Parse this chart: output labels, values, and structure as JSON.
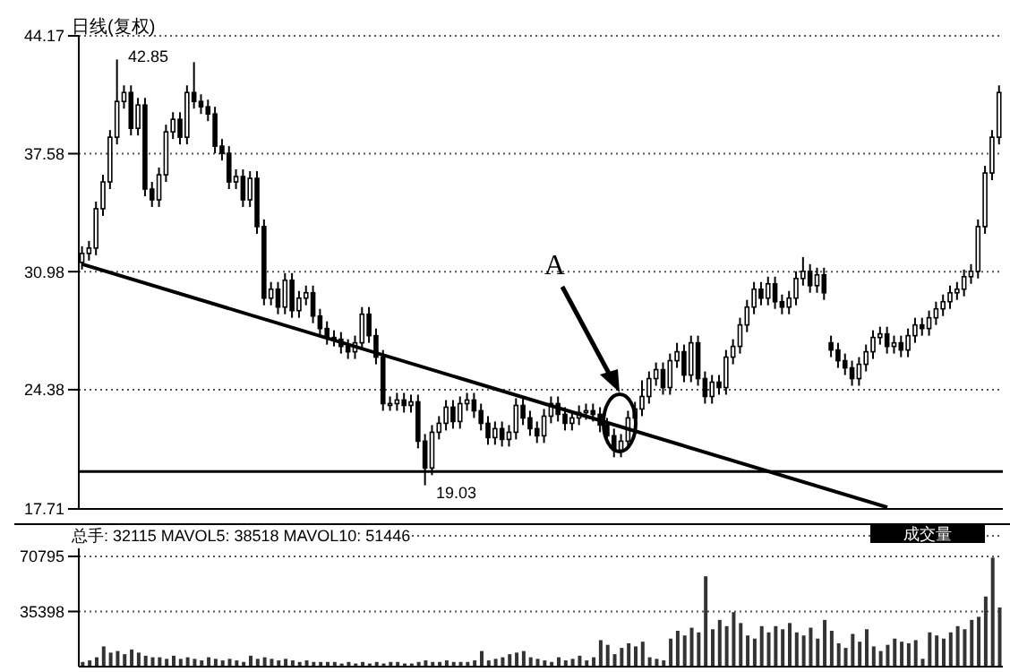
{
  "chart_data": [
    {
      "type": "candlestick",
      "title": "日线(复权)",
      "categories": [
        null,
        null,
        null,
        null,
        null,
        null,
        null,
        null,
        null,
        null,
        null,
        null,
        null,
        null,
        null,
        null,
        null,
        null,
        null,
        null,
        null,
        null,
        null,
        null,
        null,
        null,
        null,
        null,
        null,
        null,
        null,
        null,
        null,
        null,
        null,
        null,
        null,
        null,
        null,
        null,
        null,
        null,
        null,
        null,
        null,
        null,
        null,
        null,
        null,
        null,
        null,
        null,
        null,
        null,
        null,
        null,
        null,
        null,
        null,
        null,
        null,
        null,
        null,
        null,
        null,
        null,
        null,
        null,
        null,
        null,
        null,
        null,
        null,
        null,
        null,
        null,
        null,
        null,
        null,
        null,
        null,
        null,
        null,
        null,
        null,
        null,
        null,
        null,
        null,
        null,
        null,
        null,
        null,
        null,
        null,
        null,
        null,
        null,
        null,
        null,
        null,
        null,
        null,
        null,
        null,
        null,
        null,
        null,
        null,
        null,
        null,
        null,
        null,
        null,
        null,
        null,
        null,
        null,
        null,
        null,
        null,
        null,
        null,
        null,
        null,
        null,
        null,
        null,
        null,
        null,
        null,
        null
      ],
      "color": "#000000",
      "ohlc": [
        [
          31.5,
          32.4,
          31.1,
          32.0
        ],
        [
          32.0,
          32.7,
          31.6,
          32.3
        ],
        [
          32.3,
          34.9,
          31.9,
          34.5
        ],
        [
          34.5,
          36.4,
          34.1,
          36.0
        ],
        [
          36.0,
          38.9,
          35.6,
          38.5
        ],
        [
          38.5,
          42.85,
          38.1,
          40.5
        ],
        [
          40.5,
          41.4,
          40.1,
          41.0
        ],
        [
          41.0,
          41.4,
          38.6,
          39.0
        ],
        [
          39.0,
          40.7,
          38.6,
          40.3
        ],
        [
          40.3,
          40.7,
          35.2,
          35.6
        ],
        [
          35.6,
          36.0,
          34.6,
          35.0
        ],
        [
          35.0,
          36.8,
          34.6,
          36.4
        ],
        [
          36.4,
          39.2,
          36.0,
          38.8
        ],
        [
          38.8,
          39.9,
          38.4,
          39.5
        ],
        [
          39.5,
          39.9,
          38.1,
          38.5
        ],
        [
          38.5,
          41.4,
          38.1,
          41.0
        ],
        [
          41.0,
          42.7,
          40.1,
          40.5
        ],
        [
          40.5,
          40.9,
          39.8,
          40.2
        ],
        [
          40.2,
          40.6,
          39.4,
          39.8
        ],
        [
          39.8,
          40.2,
          37.6,
          38.0
        ],
        [
          38.0,
          38.4,
          37.2,
          37.6
        ],
        [
          37.6,
          38.0,
          35.6,
          36.0
        ],
        [
          36.0,
          36.7,
          35.6,
          36.3
        ],
        [
          36.3,
          36.7,
          34.6,
          35.0
        ],
        [
          35.0,
          36.6,
          34.6,
          36.2
        ],
        [
          36.2,
          36.6,
          33.1,
          33.5
        ],
        [
          33.5,
          33.9,
          29.1,
          29.5
        ],
        [
          29.5,
          30.4,
          29.1,
          30.0
        ],
        [
          30.0,
          30.4,
          28.6,
          29.0
        ],
        [
          29.0,
          30.9,
          28.6,
          30.5
        ],
        [
          30.5,
          30.9,
          28.4,
          28.8
        ],
        [
          28.8,
          29.9,
          28.4,
          29.5
        ],
        [
          29.5,
          30.2,
          29.1,
          29.8
        ],
        [
          29.8,
          30.2,
          28.1,
          28.5
        ],
        [
          28.5,
          28.9,
          27.4,
          27.8
        ],
        [
          27.8,
          28.2,
          26.9,
          27.3
        ],
        [
          27.3,
          27.7,
          26.8,
          27.2
        ],
        [
          27.2,
          27.6,
          26.4,
          26.8
        ],
        [
          26.8,
          27.2,
          26.1,
          26.5
        ],
        [
          26.5,
          27.4,
          26.1,
          27.0
        ],
        [
          27.0,
          29.0,
          26.6,
          28.6
        ],
        [
          28.6,
          29.0,
          27.0,
          27.4
        ],
        [
          27.4,
          27.8,
          25.8,
          26.2
        ],
        [
          26.2,
          26.6,
          23.2,
          23.6
        ],
        [
          23.6,
          24.0,
          23.2,
          23.6
        ],
        [
          23.6,
          24.2,
          23.2,
          23.8
        ],
        [
          23.8,
          24.2,
          23.1,
          23.5
        ],
        [
          23.5,
          24.1,
          23.1,
          23.7
        ],
        [
          23.7,
          24.1,
          21.1,
          21.5
        ],
        [
          21.5,
          21.9,
          19.03,
          20.0
        ],
        [
          20.0,
          22.4,
          19.6,
          22.0
        ],
        [
          22.0,
          22.9,
          21.6,
          22.5
        ],
        [
          22.5,
          23.8,
          22.1,
          23.4
        ],
        [
          23.4,
          23.8,
          22.2,
          22.6
        ],
        [
          22.6,
          24.0,
          22.2,
          23.6
        ],
        [
          23.6,
          24.2,
          23.2,
          23.8
        ],
        [
          23.8,
          24.2,
          22.8,
          23.2
        ],
        [
          23.2,
          23.6,
          22.1,
          22.5
        ],
        [
          22.5,
          22.9,
          21.3,
          21.7
        ],
        [
          21.7,
          22.6,
          21.3,
          22.2
        ],
        [
          22.2,
          22.6,
          21.2,
          21.6
        ],
        [
          21.6,
          22.4,
          21.2,
          22.0
        ],
        [
          22.0,
          23.9,
          21.6,
          23.5
        ],
        [
          23.5,
          23.9,
          22.4,
          22.8
        ],
        [
          22.8,
          23.2,
          21.8,
          22.2
        ],
        [
          22.2,
          22.6,
          21.4,
          21.8
        ],
        [
          21.8,
          23.3,
          21.4,
          22.9
        ],
        [
          22.9,
          24.0,
          22.5,
          23.6
        ],
        [
          23.6,
          24.0,
          22.6,
          23.0
        ],
        [
          23.0,
          23.4,
          22.1,
          22.5
        ],
        [
          22.5,
          23.2,
          22.1,
          22.8
        ],
        [
          22.8,
          23.5,
          22.4,
          23.1
        ],
        [
          23.1,
          23.6,
          22.7,
          23.2
        ],
        [
          23.2,
          23.6,
          22.6,
          23.0
        ],
        [
          23.0,
          23.4,
          22.0,
          22.4
        ],
        [
          22.4,
          22.8,
          21.4,
          21.8
        ],
        [
          21.8,
          22.2,
          20.6,
          21.0
        ],
        [
          21.0,
          21.9,
          20.6,
          21.5
        ],
        [
          21.5,
          23.2,
          21.1,
          22.8
        ],
        [
          22.8,
          23.7,
          22.4,
          23.3
        ],
        [
          23.3,
          24.9,
          22.9,
          24.0
        ],
        [
          24.0,
          25.4,
          23.6,
          25.0
        ],
        [
          25.0,
          25.9,
          24.6,
          25.5
        ],
        [
          25.5,
          25.9,
          24.1,
          24.5
        ],
        [
          24.5,
          26.4,
          24.1,
          26.0
        ],
        [
          26.0,
          27.0,
          25.6,
          26.5
        ],
        [
          26.5,
          26.9,
          24.8,
          25.2
        ],
        [
          25.2,
          27.4,
          24.8,
          27.0
        ],
        [
          27.0,
          27.4,
          24.6,
          25.0
        ],
        [
          25.0,
          25.4,
          23.6,
          24.0
        ],
        [
          24.0,
          25.2,
          23.6,
          24.8
        ],
        [
          24.8,
          25.2,
          24.1,
          24.5
        ],
        [
          24.5,
          26.6,
          24.1,
          26.2
        ],
        [
          26.2,
          27.2,
          25.8,
          26.8
        ],
        [
          26.8,
          28.4,
          26.4,
          28.0
        ],
        [
          28.0,
          29.4,
          27.6,
          29.0
        ],
        [
          29.0,
          30.4,
          28.6,
          30.0
        ],
        [
          30.0,
          30.4,
          29.1,
          29.5
        ],
        [
          29.5,
          30.7,
          29.1,
          30.3
        ],
        [
          30.3,
          30.7,
          28.9,
          29.3
        ],
        [
          29.3,
          29.7,
          28.6,
          29.0
        ],
        [
          29.0,
          29.9,
          28.6,
          29.5
        ],
        [
          29.5,
          31.0,
          29.1,
          30.6
        ],
        [
          30.6,
          31.8,
          30.2,
          31.0
        ],
        [
          31.0,
          31.4,
          29.8,
          30.2
        ],
        [
          30.2,
          31.2,
          29.8,
          30.8
        ],
        [
          30.8,
          31.2,
          29.4,
          29.8
        ],
        [
          27.0,
          27.4,
          26.2,
          26.6
        ],
        [
          26.6,
          27.0,
          25.6,
          26.0
        ],
        [
          26.0,
          26.4,
          25.2,
          25.6
        ],
        [
          25.6,
          26.0,
          24.6,
          25.0
        ],
        [
          25.0,
          26.2,
          24.6,
          25.8
        ],
        [
          25.8,
          26.9,
          25.4,
          26.5
        ],
        [
          26.5,
          27.7,
          26.1,
          27.3
        ],
        [
          27.3,
          27.9,
          26.9,
          27.5
        ],
        [
          27.5,
          27.9,
          26.4,
          26.8
        ],
        [
          26.8,
          27.4,
          26.4,
          27.0
        ],
        [
          27.0,
          27.4,
          26.2,
          26.6
        ],
        [
          26.6,
          27.8,
          26.2,
          27.4
        ],
        [
          27.4,
          28.4,
          27.0,
          28.0
        ],
        [
          28.0,
          28.4,
          27.4,
          27.8
        ],
        [
          27.8,
          28.8,
          27.4,
          28.4
        ],
        [
          28.4,
          29.3,
          28.0,
          28.9
        ],
        [
          28.9,
          29.7,
          28.5,
          29.3
        ],
        [
          29.3,
          30.2,
          28.9,
          29.8
        ],
        [
          29.8,
          30.4,
          29.4,
          30.0
        ],
        [
          30.0,
          31.1,
          29.6,
          30.7
        ],
        [
          30.7,
          31.4,
          30.3,
          31.0
        ],
        [
          31.0,
          33.9,
          30.6,
          33.5
        ],
        [
          33.5,
          36.9,
          33.1,
          36.5
        ],
        [
          36.5,
          38.9,
          36.1,
          38.5
        ],
        [
          38.5,
          41.4,
          38.1,
          41.0
        ]
      ],
      "series": [
        {
          "type": "line",
          "color": "#000000",
          "values": [
            31.4,
            null,
            null,
            null,
            null,
            null,
            null,
            null,
            null,
            null,
            null,
            null,
            null,
            null,
            null,
            null,
            null,
            null,
            null,
            null,
            null,
            null,
            null,
            null,
            null,
            null,
            null,
            null,
            null,
            null,
            null,
            null,
            null,
            null,
            null,
            null,
            null,
            null,
            null,
            null,
            null,
            null,
            null,
            null,
            null,
            null,
            null,
            null,
            null,
            null,
            null,
            null,
            null,
            null,
            null,
            null,
            null,
            null,
            null,
            null,
            null,
            null,
            null,
            null,
            null,
            null,
            null,
            null,
            null,
            null,
            null,
            null,
            null,
            null,
            null,
            null,
            null,
            null,
            null,
            null,
            null,
            null,
            null,
            null,
            null,
            null,
            null,
            null,
            null,
            null,
            null,
            null,
            null,
            null,
            null,
            null,
            null,
            null,
            null,
            null,
            null,
            null,
            null,
            null,
            null,
            null,
            null,
            null,
            null,
            null,
            null,
            null,
            null,
            null,
            null,
            17.8,
            null,
            null,
            null,
            null,
            null,
            null,
            null,
            null,
            null,
            null,
            null,
            null,
            null,
            null,
            null,
            null
          ]
        }
      ],
      "ylim": [
        17.71,
        44.17
      ],
      "yticks": [
        17.71,
        24.38,
        30.98,
        37.58,
        44.17
      ],
      "grid": "y",
      "ref_lines": [
        {
          "axis": "y",
          "value": 19.8,
          "color": "#000000"
        }
      ],
      "annotations": [
        "42.85",
        "19.03",
        "A"
      ]
    },
    {
      "type": "bar",
      "categories": [
        null,
        null,
        null,
        null,
        null,
        null,
        null,
        null,
        null,
        null,
        null,
        null,
        null,
        null,
        null,
        null,
        null,
        null,
        null,
        null,
        null,
        null,
        null,
        null,
        null,
        null,
        null,
        null,
        null,
        null,
        null,
        null,
        null,
        null,
        null,
        null,
        null,
        null,
        null,
        null,
        null,
        null,
        null,
        null,
        null,
        null,
        null,
        null,
        null,
        null,
        null,
        null,
        null,
        null,
        null,
        null,
        null,
        null,
        null,
        null,
        null,
        null,
        null,
        null,
        null,
        null,
        null,
        null,
        null,
        null,
        null,
        null,
        null,
        null,
        null,
        null,
        null,
        null,
        null,
        null,
        null,
        null,
        null,
        null,
        null,
        null,
        null,
        null,
        null,
        null,
        null,
        null,
        null,
        null,
        null,
        null,
        null,
        null,
        null,
        null,
        null,
        null,
        null,
        null,
        null,
        null,
        null,
        null,
        null,
        null,
        null,
        null,
        null,
        null,
        null,
        null,
        null,
        null,
        null,
        null,
        null,
        null,
        null,
        null,
        null,
        null,
        null,
        null,
        null,
        null,
        null,
        null
      ],
      "color": "#333333",
      "values": [
        3000,
        4000,
        6000,
        13000,
        9000,
        10000,
        8000,
        11000,
        9000,
        7000,
        6000,
        6000,
        5000,
        7000,
        5000,
        6000,
        5000,
        4000,
        6000,
        5000,
        4000,
        5000,
        4000,
        3000,
        7000,
        5000,
        6000,
        5000,
        4000,
        5000,
        4000,
        3000,
        4000,
        3000,
        3000,
        3000,
        3000,
        2000,
        3000,
        2000,
        3000,
        2000,
        3000,
        2000,
        3000,
        3000,
        2000,
        2000,
        3000,
        4000,
        3000,
        3000,
        4000,
        3000,
        3000,
        3000,
        4000,
        10000,
        4000,
        5000,
        6000,
        8000,
        9000,
        10000,
        6000,
        5000,
        4000,
        3000,
        6000,
        4000,
        5000,
        7000,
        4000,
        6000,
        17000,
        14000,
        8000,
        12000,
        15000,
        13000,
        16000,
        6000,
        5000,
        4000,
        18000,
        23000,
        20000,
        25000,
        22000,
        58000,
        24000,
        30000,
        26000,
        35000,
        28000,
        20000,
        18000,
        26000,
        22000,
        26000,
        24000,
        28000,
        22000,
        20000,
        25000,
        18000,
        30000,
        23000,
        15000,
        12000,
        21000,
        16000,
        24000,
        13000,
        10000,
        14000,
        18000,
        16000,
        15000,
        17000,
        5000,
        22000,
        20000,
        18000,
        22000,
        26000,
        24000,
        30000,
        32000,
        45000,
        70000,
        38000
      ],
      "ylim": [
        0,
        84000
      ],
      "yticks": [
        35398,
        70795
      ],
      "grid": "y",
      "annotations": [
        "总手: 32115 MAVOL5: 38518 MAVOL10: 51446",
        "成交量"
      ]
    }
  ]
}
